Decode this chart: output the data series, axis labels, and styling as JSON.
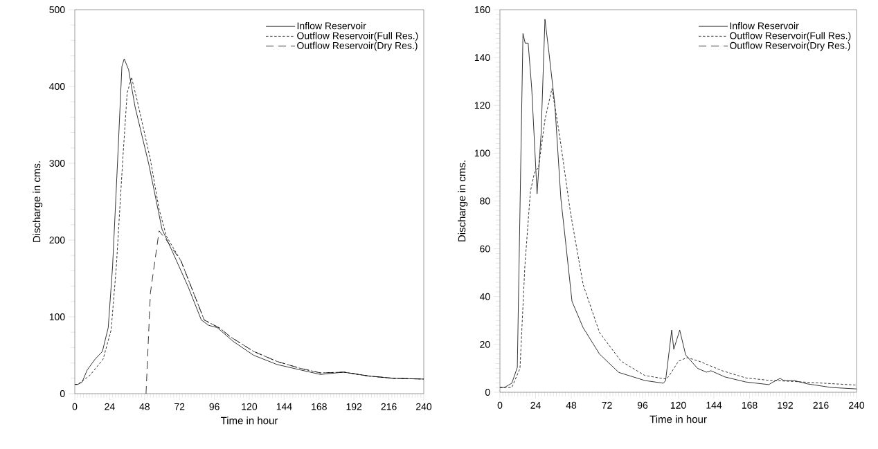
{
  "chart_data": [
    {
      "type": "line",
      "xlabel": "Time in hour",
      "ylabel": "Discharge in cms.",
      "xlim": [
        0,
        240
      ],
      "ylim": [
        0,
        500
      ],
      "xticks": [
        0,
        24,
        48,
        72,
        96,
        120,
        144,
        168,
        192,
        216,
        240
      ],
      "yticks": [
        0,
        100,
        200,
        300,
        400,
        500
      ],
      "legend": "top right",
      "series": [
        {
          "name": "Inflow Reservoir",
          "color": "#000000",
          "line_style": "solid",
          "x": [
            0,
            2,
            5,
            8.6,
            14,
            19,
            23,
            26,
            29.5,
            32.4,
            34,
            37,
            41.4,
            51,
            60,
            65,
            78,
            87,
            92,
            98,
            109,
            123,
            139,
            155,
            169,
            185,
            202,
            219,
            240
          ],
          "values": [
            12,
            12,
            15,
            31,
            45,
            55,
            86,
            166,
            305,
            426,
            436,
            422,
            374,
            298,
            214,
            194,
            139,
            96,
            89,
            86,
            68,
            50,
            38,
            31,
            25,
            28,
            23,
            20,
            19
          ]
        },
        {
          "name": "Outflow Reservoir(Full Res.)",
          "color": "#000000",
          "line_style": "dotted",
          "x": [
            0,
            2,
            10.5,
            19.5,
            25,
            28.6,
            33,
            36,
            39,
            43,
            52,
            58,
            63,
            73,
            89,
            100,
            107,
            123,
            139,
            155,
            169,
            185,
            202,
            219,
            240
          ],
          "values": [
            12,
            12,
            24,
            45,
            83,
            166,
            305,
            391,
            412,
            381,
            305,
            240,
            205,
            173,
            96,
            85,
            74,
            55,
            42,
            33,
            27,
            28,
            23,
            20,
            19
          ]
        },
        {
          "name": "Outflow Reservoir(Dry Res.)",
          "color": "#000000",
          "line_style": "dashed",
          "x": [
            49,
            52,
            58,
            63,
            73,
            89,
            100,
            107,
            123,
            139,
            155,
            169,
            185,
            202,
            219,
            240
          ],
          "values": [
            0,
            131,
            212,
            200,
            173,
            96,
            85,
            74,
            55,
            42,
            33,
            27,
            28,
            23,
            20,
            19
          ]
        }
      ]
    },
    {
      "type": "line",
      "xlabel": "Time in hour",
      "ylabel": "Discharge in cms.",
      "xlim": [
        0,
        240
      ],
      "ylim": [
        0,
        160
      ],
      "xticks": [
        0,
        24,
        48,
        72,
        96,
        120,
        144,
        168,
        192,
        216,
        240
      ],
      "yticks": [
        0,
        20,
        40,
        60,
        80,
        100,
        120,
        140,
        160
      ],
      "legend": "top right",
      "series": [
        {
          "name": "Inflow Reservoir",
          "color": "#000000",
          "line_style": "solid",
          "x": [
            0,
            3,
            8,
            11.7,
            15.5,
            17,
            19,
            21.4,
            25,
            27.7,
            30.3,
            33,
            37,
            41,
            44,
            48.5,
            56,
            67,
            80,
            97.6,
            110,
            111.5,
            115.6,
            117,
            121,
            125,
            133,
            139,
            142,
            151.5,
            165.5,
            181,
            183,
            188.5,
            191,
            198,
            207,
            223,
            240
          ],
          "values": [
            2,
            2,
            3.8,
            10.4,
            150,
            146,
            146,
            127,
            83,
            108,
            156,
            142,
            120,
            81,
            64,
            38,
            27,
            16,
            8.3,
            4.9,
            3.8,
            4.9,
            26,
            18,
            26,
            15.6,
            10,
            8.4,
            9,
            6.4,
            4.3,
            3.2,
            4,
            5.8,
            4.9,
            4.9,
            3.5,
            2,
            1.4
          ]
        },
        {
          "name": "Outflow Reservoir(Full Res.)",
          "color": "#000000",
          "line_style": "dotted",
          "x": [
            0,
            8,
            13.5,
            16.8,
            20.5,
            23.3,
            26,
            30.3,
            35,
            40,
            47.5,
            56,
            67,
            81.5,
            97.6,
            112,
            114,
            120.2,
            126,
            134,
            149.6,
            165.5,
            181,
            198,
            212,
            240
          ],
          "values": [
            2,
            2,
            10,
            53,
            84,
            92,
            94,
            114,
            127,
            108,
            75,
            45,
            25,
            13,
            7,
            5.5,
            7,
            13,
            14.5,
            13,
            9,
            6,
            5,
            4.5,
            4,
            3
          ]
        },
        {
          "name": "Outflow Reservoir(Dry Res.)",
          "color": "#000000",
          "line_style": "dashed"
        }
      ]
    }
  ]
}
